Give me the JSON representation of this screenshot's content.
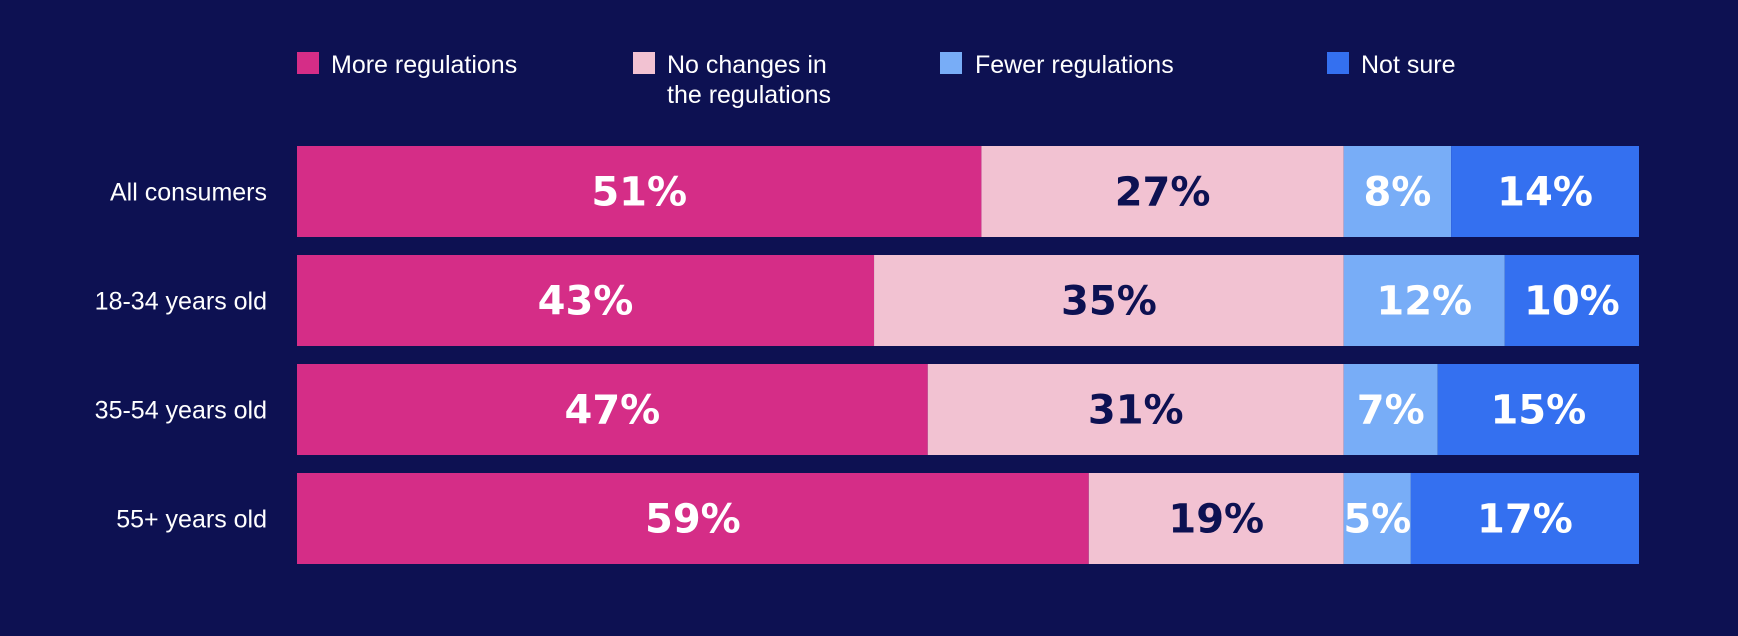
{
  "chart_data": {
    "type": "bar",
    "orientation": "horizontal",
    "stacked": true,
    "categories": [
      "All consumers",
      "18-34 years old",
      "35-54 years old",
      "55+ years old"
    ],
    "series": [
      {
        "name": "More regulations",
        "values": [
          51,
          43,
          47,
          59
        ],
        "labels": [
          "51%",
          "43%",
          "47%",
          "59%"
        ],
        "color": "#d52d87",
        "label_color": "#ffffff"
      },
      {
        "name": "No changes in the regulations",
        "legend_lines": [
          "No changes in",
          "the regulations"
        ],
        "values": [
          27,
          35,
          31,
          19
        ],
        "labels": [
          "27%",
          "35%",
          "31%",
          "19%"
        ],
        "color": "#f2c2d2",
        "label_color": "#0d1152"
      },
      {
        "name": "Fewer regulations",
        "values": [
          8,
          12,
          7,
          5
        ],
        "labels": [
          "8%",
          "12%",
          "7%",
          "5%"
        ],
        "color": "#78adf7",
        "label_color": "#ffffff"
      },
      {
        "name": "Not sure",
        "values": [
          14,
          10,
          15,
          17
        ],
        "labels": [
          "14%",
          "10%",
          "15%",
          "17%"
        ],
        "color": "#3470f0",
        "label_color": "#ffffff"
      }
    ],
    "xlim": [
      0,
      100
    ],
    "grid": false,
    "legend_position": "top"
  },
  "background_color": "#0d1152"
}
